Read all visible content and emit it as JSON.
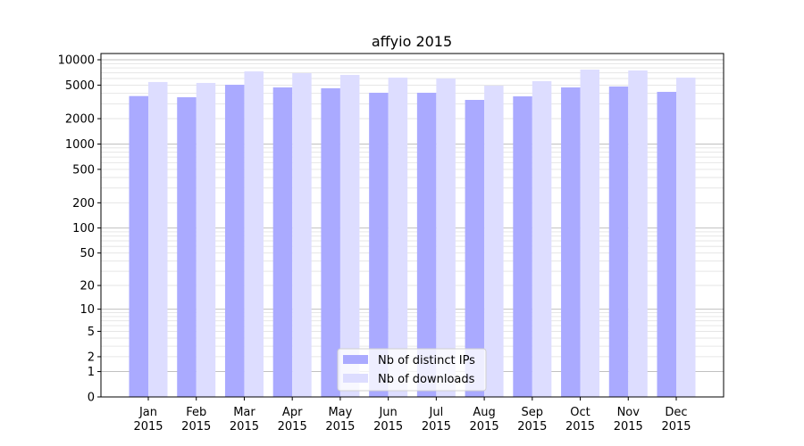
{
  "chart_data": {
    "type": "bar",
    "title": "affyio 2015",
    "xlabel": "",
    "ylabel": "",
    "yscale": "log(1+y)",
    "ylim": [
      0,
      10000
    ],
    "yticks": [
      "0",
      "1",
      "2",
      "5",
      "10",
      "20",
      "50",
      "100",
      "200",
      "500",
      "1000",
      "2000",
      "5000",
      "10000"
    ],
    "grid": true,
    "legend_position": "bottom-center",
    "categories": [
      "Jan\n2015",
      "Feb\n2015",
      "Mar\n2015",
      "Apr\n2015",
      "May\n2015",
      "Jun\n2015",
      "Jul\n2015",
      "Aug\n2015",
      "Sep\n2015",
      "Oct\n2015",
      "Nov\n2015",
      "Dec\n2015"
    ],
    "series": [
      {
        "name": "Nb of distinct IPs",
        "color": "#aaaaff",
        "values": [
          3710,
          3590,
          5050,
          4700,
          4590,
          4060,
          4060,
          3340,
          3680,
          4700,
          4820,
          4160
        ]
      },
      {
        "name": "Nb of downloads",
        "color": "#ddddff",
        "values": [
          5440,
          5310,
          7280,
          6940,
          6610,
          6140,
          6000,
          4930,
          5570,
          7650,
          7460,
          6140
        ]
      }
    ]
  }
}
